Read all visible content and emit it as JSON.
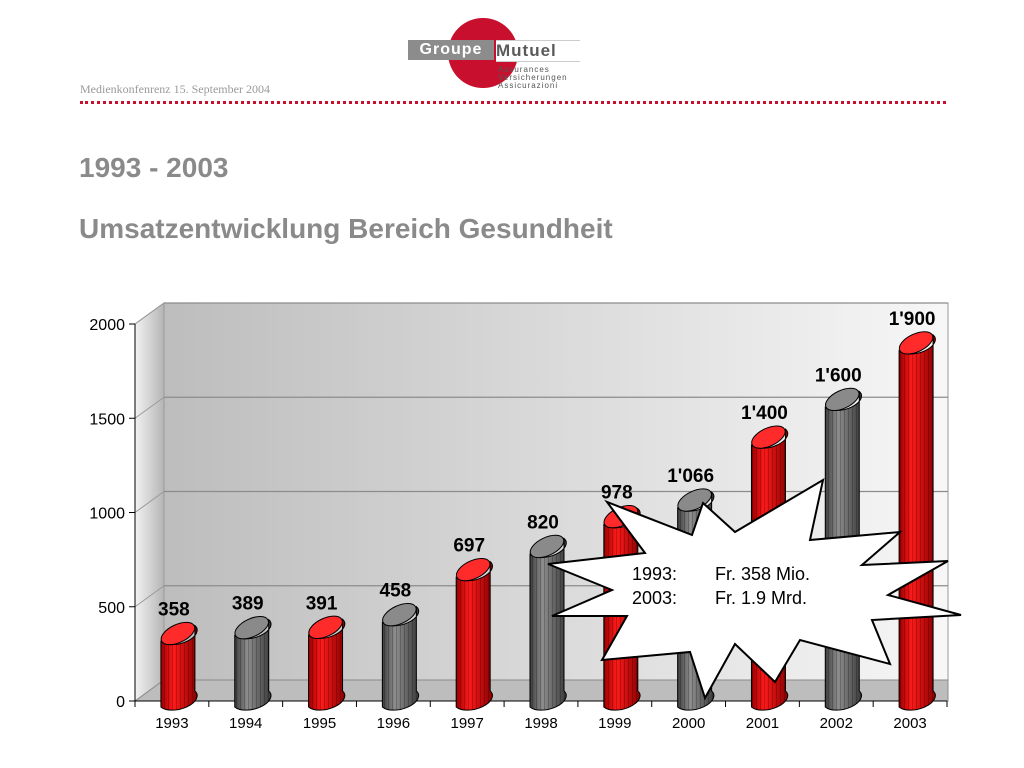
{
  "header": {
    "conference": "Medienkonfenrenz 15. September 2004",
    "logo": {
      "groupe": "Groupe",
      "mutuel": "Mutuel",
      "lines": [
        "Assurances",
        "Versicherungen",
        "Assicurazioni"
      ]
    }
  },
  "titles": {
    "line1": "1993 - 2003",
    "line2": "Umsatzentwicklung Bereich Gesundheit"
  },
  "colors": {
    "red": "#e00000",
    "gray": "#6e6e6e",
    "accent": "#c8102e"
  },
  "chart_data": {
    "type": "bar",
    "categories": [
      "1993",
      "1994",
      "1995",
      "1996",
      "1997",
      "1998",
      "1999",
      "2000",
      "2001",
      "2002",
      "2003"
    ],
    "values": [
      358,
      389,
      391,
      458,
      697,
      820,
      978,
      1066,
      1400,
      1600,
      1900
    ],
    "value_labels": [
      "358",
      "389",
      "391",
      "458",
      "697",
      "820",
      "978",
      "1'066",
      "1'400",
      "1'600",
      "1'900"
    ],
    "bar_colors": [
      "red",
      "gray",
      "red",
      "gray",
      "red",
      "gray",
      "red",
      "gray",
      "red",
      "gray",
      "red"
    ],
    "ylim": [
      0,
      2000
    ],
    "yticks": [
      "0",
      "500",
      "1000",
      "1500",
      "2000"
    ],
    "grid": true,
    "title": "",
    "xlabel": "",
    "ylabel": "",
    "callout": {
      "rows": [
        {
          "year": "1993:",
          "value": "Fr. 358 Mio."
        },
        {
          "year": "2003:",
          "value": "Fr. 1.9 Mrd."
        }
      ]
    }
  }
}
